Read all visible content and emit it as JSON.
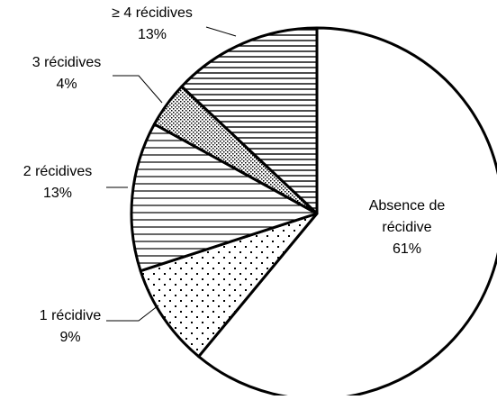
{
  "chart_data": {
    "type": "pie",
    "title": "",
    "slices": [
      {
        "label": "Absence de récidive",
        "label_lines": [
          "Absence de",
          "récidive"
        ],
        "value": 61,
        "value_label": "61%",
        "pattern": "none"
      },
      {
        "label": "1 récidive",
        "label_lines": [
          "1 récidive"
        ],
        "value": 9,
        "value_label": "9%",
        "pattern": "dots"
      },
      {
        "label": "2 récidives",
        "label_lines": [
          "2 récidives"
        ],
        "value": 13,
        "value_label": "13%",
        "pattern": "horizontal-lines"
      },
      {
        "label": "3 récidives",
        "label_lines": [
          "3 récidives"
        ],
        "value": 4,
        "value_label": "4%",
        "pattern": "checker"
      },
      {
        "label": "≥ 4 récidives",
        "label_lines": [
          "≥ 4 récidives"
        ],
        "value": 13,
        "value_label": "13%",
        "pattern": "horizontal-lines-dense"
      }
    ],
    "start_angle": "12 o'clock",
    "direction": "clockwise",
    "legend": "none",
    "labels": "category name and percentage next to each slice",
    "colors": {
      "fill": "#ffffff",
      "stroke": "#000000"
    }
  }
}
